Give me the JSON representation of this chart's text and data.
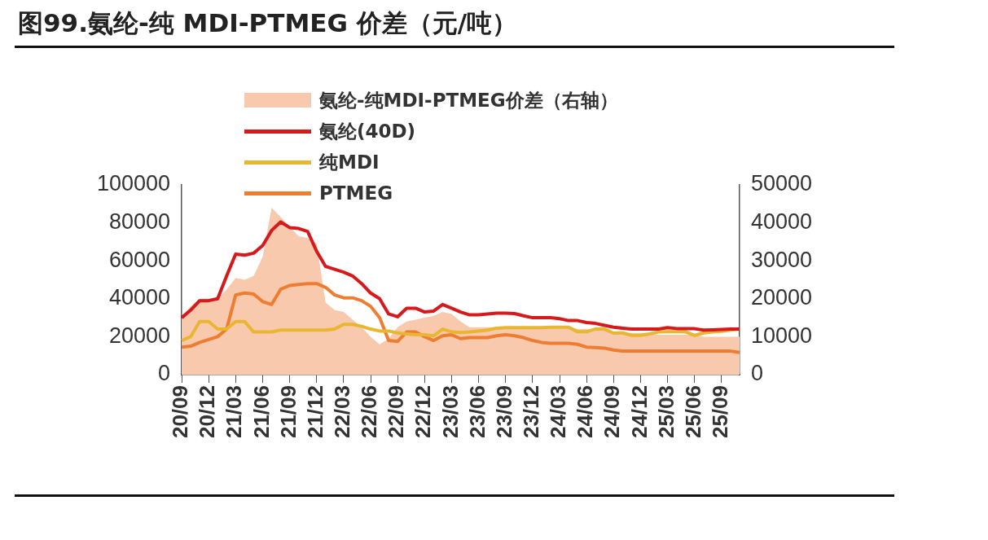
{
  "chart_data": {
    "type": "line",
    "title": "图99.氨纶-纯 MDI-PTMEG 价差（元/吨）",
    "categories": [
      "20/09",
      null,
      null,
      "20/12",
      null,
      null,
      "21/03",
      null,
      null,
      "21/06",
      null,
      null,
      "21/09",
      null,
      null,
      "21/12",
      null,
      null,
      "22/03",
      null,
      null,
      "22/06",
      null,
      null,
      "22/09",
      null,
      null,
      "22/12",
      null,
      null,
      "23/03",
      null,
      null,
      "23/06",
      null,
      null,
      "23/09",
      null,
      null,
      "23/12",
      null,
      null,
      "24/03",
      null,
      null,
      "24/06",
      null,
      null,
      "24/09",
      null,
      null,
      "24/12",
      null,
      null,
      "25/03",
      null,
      null,
      "25/06",
      null,
      null,
      "25/09",
      null,
      null
    ],
    "series": [
      {
        "name": "氨纶-纯MDI-PTMEG价差（右轴）",
        "type": "area",
        "axis": "y2",
        "color": "#f8c9ad",
        "values": [
          15000,
          18000,
          20000,
          20000,
          20000,
          22500,
          25500,
          25000,
          26000,
          31000,
          44000,
          41500,
          39000,
          36500,
          36000,
          34500,
          19000,
          17000,
          16500,
          14500,
          12500,
          10000,
          8000,
          9500,
          12500,
          14000,
          14500,
          15000,
          15500,
          16500,
          16000,
          14000,
          12500,
          12500,
          12500,
          12500,
          12500,
          12500,
          12500,
          12500,
          12500,
          12500,
          12500,
          12500,
          12000,
          12000,
          12000,
          12000,
          11000,
          11000,
          11000,
          11000,
          11000,
          10500,
          10500,
          10500,
          10500,
          10500,
          10000,
          10000,
          10000,
          10000,
          10000
        ]
      },
      {
        "name": "氨纶(40D)",
        "type": "line",
        "color": "#d7191c",
        "values": [
          30000,
          34000,
          39000,
          39000,
          40000,
          52000,
          63500,
          63000,
          64000,
          68000,
          76000,
          80500,
          77500,
          77000,
          75500,
          65000,
          57000,
          55500,
          54000,
          52000,
          48000,
          43000,
          40000,
          32000,
          30500,
          35000,
          35000,
          33000,
          33500,
          37000,
          35000,
          33000,
          31500,
          31500,
          32000,
          32400,
          32400,
          32200,
          31000,
          30000,
          30000,
          30000,
          29500,
          28500,
          28500,
          27500,
          27000,
          26000,
          25000,
          24500,
          24000,
          24000,
          24000,
          24000,
          24800,
          24300,
          24200,
          24200,
          23500,
          23600,
          23800,
          24000,
          24000
        ]
      },
      {
        "name": "纯MDI",
        "type": "line",
        "color": "#e8b630",
        "values": [
          18000,
          20000,
          28000,
          28000,
          24000,
          24000,
          28000,
          28000,
          22500,
          22500,
          22500,
          23500,
          23500,
          23500,
          23500,
          23500,
          23500,
          24000,
          26500,
          26500,
          25500,
          24000,
          23000,
          23000,
          22000,
          21500,
          21000,
          21000,
          20500,
          24000,
          22500,
          22200,
          22500,
          23000,
          23500,
          24500,
          24800,
          24800,
          24800,
          24800,
          24800,
          25000,
          25000,
          25000,
          22600,
          22600,
          24100,
          24000,
          21900,
          22000,
          20700,
          20700,
          21500,
          22500,
          22600,
          22600,
          22600,
          20700,
          22000,
          22500,
          22800,
          23500,
          24000
        ]
      },
      {
        "name": "PTMEG",
        "type": "line",
        "color": "#ee7d31",
        "values": [
          14500,
          15000,
          17000,
          18500,
          20000,
          24000,
          42000,
          43000,
          42500,
          38500,
          37000,
          45000,
          47000,
          47500,
          48000,
          48000,
          46000,
          42000,
          40500,
          40500,
          39000,
          36000,
          30000,
          18000,
          17500,
          22500,
          22500,
          20000,
          18000,
          20500,
          21000,
          19000,
          19500,
          19500,
          19500,
          20500,
          21000,
          20500,
          19500,
          18000,
          17000,
          16500,
          16500,
          16500,
          16000,
          14500,
          14300,
          14000,
          13000,
          12400,
          12400,
          12400,
          12400,
          12400,
          12400,
          12400,
          12400,
          12400,
          12400,
          12400,
          12400,
          12400,
          11700
        ]
      }
    ],
    "ylim": [
      0,
      100000
    ],
    "yticks": [
      0,
      20000,
      40000,
      60000,
      80000,
      100000
    ],
    "y2lim": [
      0,
      50000
    ],
    "y2ticks": [
      0,
      10000,
      20000,
      30000,
      40000,
      50000
    ],
    "grid": false,
    "legend": "top",
    "marker": "none",
    "line_style": "solid"
  }
}
